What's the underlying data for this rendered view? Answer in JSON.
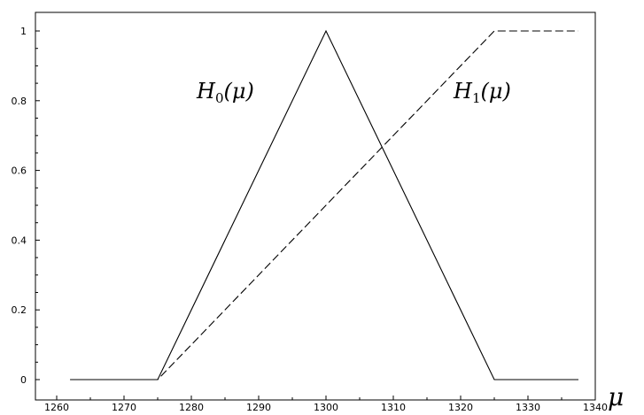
{
  "chart_data": {
    "type": "line",
    "xlim": [
      1260,
      1340
    ],
    "ylim": [
      0,
      1.05
    ],
    "x_ticks": [
      1260,
      1270,
      1280,
      1290,
      1300,
      1310,
      1320,
      1330,
      1340
    ],
    "y_ticks": [
      0,
      0.2,
      0.4,
      0.6,
      0.8,
      1
    ],
    "x_tick_labels": [
      "1260",
      "1270",
      "1280",
      "1290",
      "1300",
      "1310",
      "1320",
      "1330",
      "1340"
    ],
    "y_tick_labels": [
      "0",
      "0.2",
      "0.4",
      "0.6",
      "0.8",
      "1"
    ],
    "xlabel": "μ",
    "grid": false,
    "series": [
      {
        "label_main": "H",
        "label_sub": "0",
        "label_arg": "(μ)",
        "style": "solid",
        "color": "#000000",
        "x": [
          1262,
          1275,
          1300,
          1325,
          1337.5
        ],
        "y": [
          0,
          0,
          1,
          0,
          0
        ]
      },
      {
        "label_main": "H",
        "label_sub": "1",
        "label_arg": "(μ)",
        "style": "dashed",
        "color": "#000000",
        "x": [
          1262,
          1275,
          1325,
          1337.5
        ],
        "y": [
          0,
          0,
          1,
          1
        ]
      }
    ]
  }
}
